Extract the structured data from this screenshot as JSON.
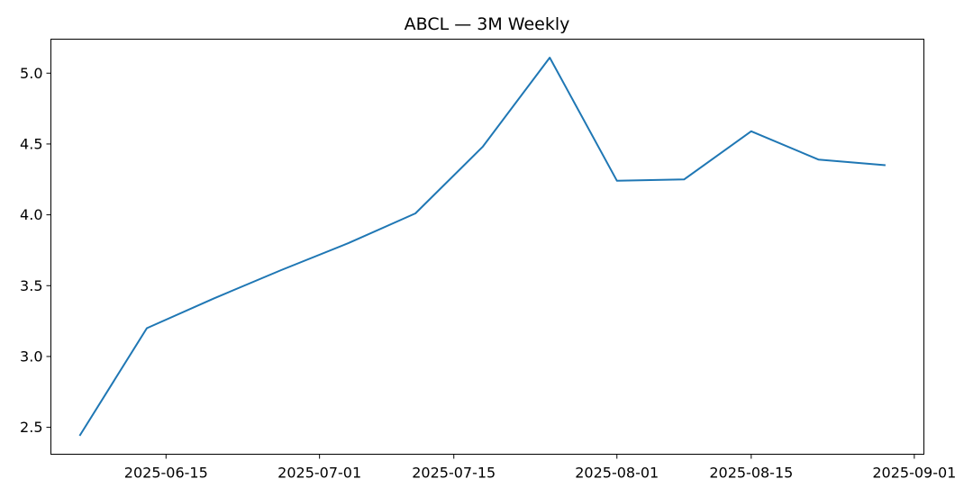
{
  "chart_data": {
    "type": "line",
    "title": "ABCL — 3M Weekly",
    "xlabel": "",
    "ylabel": "",
    "x_tick_labels": [
      "2025-06-15",
      "2025-07-01",
      "2025-07-15",
      "2025-08-01",
      "2025-08-15",
      "2025-09-01"
    ],
    "x_tick_dates": [
      "2025-06-15",
      "2025-07-01",
      "2025-07-15",
      "2025-08-01",
      "2025-08-15",
      "2025-09-01"
    ],
    "y_ticks": [
      2.5,
      3.0,
      3.5,
      4.0,
      4.5,
      5.0
    ],
    "y_tick_labels": [
      "2.5",
      "3.0",
      "3.5",
      "4.0",
      "4.5",
      "5.0"
    ],
    "xlim": [
      "2025-06-03",
      "2025-09-02"
    ],
    "ylim": [
      2.31,
      5.24
    ],
    "grid": false,
    "line_color": "#1f77b4",
    "x": [
      "2025-06-06",
      "2025-06-13",
      "2025-06-20",
      "2025-06-27",
      "2025-07-04",
      "2025-07-11",
      "2025-07-18",
      "2025-07-25",
      "2025-08-01",
      "2025-08-08",
      "2025-08-15",
      "2025-08-22",
      "2025-08-29"
    ],
    "values": [
      2.44,
      3.2,
      3.41,
      3.61,
      3.8,
      4.01,
      4.48,
      5.11,
      4.24,
      4.25,
      4.59,
      4.39,
      4.35
    ]
  }
}
